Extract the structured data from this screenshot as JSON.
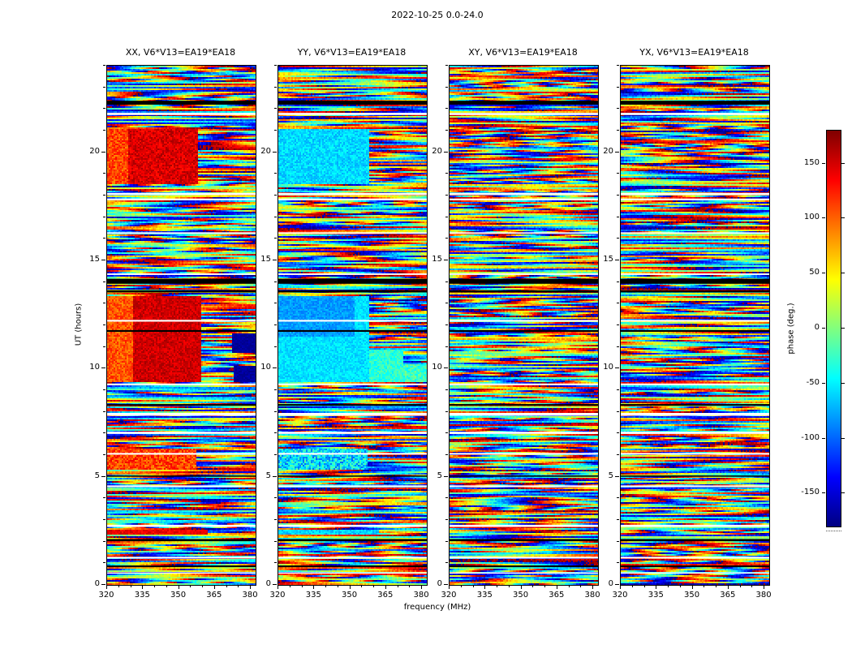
{
  "chart_data": {
    "type": "heatmap",
    "title": "2022-10-25 0.0-24.0",
    "xlabel": "frequency (MHz)",
    "ylabel": "UT (hours)",
    "x_range_mhz": [
      320,
      382
    ],
    "y_range_hours": [
      0,
      24
    ],
    "x_ticks": [
      320,
      335,
      350,
      365,
      380
    ],
    "x_minor_step_mhz": 5,
    "y_ticks": [
      0,
      5,
      10,
      15,
      20
    ],
    "y_minor_step_hours": 1,
    "colorbar": {
      "label": "phase (deg.)",
      "range_deg": [
        -180,
        180
      ],
      "ticks": [
        150,
        100,
        50,
        0,
        -50,
        -100,
        -150
      ],
      "colormap": "jet"
    },
    "panels": [
      {
        "label": "XX, V6*V13=EA19*EA18",
        "features": [
          {
            "ut": [
              10.75,
              11.65
            ],
            "f": [
              372,
              382
            ],
            "phase": -170,
            "jitter": 8
          },
          {
            "ut": [
              9.35,
              10.1
            ],
            "f": [
              373,
              382
            ],
            "phase": -170,
            "jitter": 8
          },
          {
            "ut": [
              9.35,
              13.35
            ],
            "f": [
              320,
              331
            ],
            "phase": 105,
            "jitter": 22
          },
          {
            "ut": [
              9.35,
              13.35
            ],
            "f": [
              331,
              359
            ],
            "phase": 152,
            "jitter": 16
          },
          {
            "ut": [
              18.55,
              21.1
            ],
            "f": [
              320,
              329
            ],
            "phase": 110,
            "jitter": 25
          },
          {
            "ut": [
              18.55,
              21.1
            ],
            "f": [
              329,
              358
            ],
            "phase": 148,
            "jitter": 20
          },
          {
            "ut": [
              5.35,
              6.3
            ],
            "f": [
              320,
              357
            ],
            "phase": 112,
            "jitter": 30
          },
          {
            "ut": [
              2.36,
              2.52
            ],
            "f": [
              320,
              362
            ],
            "phase": 140,
            "jitter": 15
          }
        ]
      },
      {
        "label": "YY, V6*V13=EA19*EA18",
        "features": [
          {
            "ut": [
              11.5,
              13.35
            ],
            "f": [
              320,
              352
            ],
            "phase": -80,
            "jitter": 14
          },
          {
            "ut": [
              9.35,
              13.35
            ],
            "f": [
              320,
              358
            ],
            "phase": -55,
            "jitter": 14
          },
          {
            "ut": [
              9.35,
              10.9
            ],
            "f": [
              358,
              372
            ],
            "phase": -30,
            "jitter": 20
          },
          {
            "ut": [
              9.35,
              10.2
            ],
            "f": [
              372,
              382
            ],
            "phase": -25,
            "jitter": 25
          },
          {
            "ut": [
              18.55,
              21.1
            ],
            "f": [
              320,
              358
            ],
            "phase": -58,
            "jitter": 18
          },
          {
            "ut": [
              5.35,
              6.3
            ],
            "f": [
              320,
              357
            ],
            "phase": -55,
            "jitter": 45
          },
          {
            "ut": [
              2.36,
              2.52
            ],
            "f": [
              320,
              362
            ],
            "phase": -60,
            "jitter": 20
          }
        ]
      },
      {
        "label": "XY, V6*V13=EA19*EA18",
        "features": []
      },
      {
        "label": "YX, V6*V13=EA19*EA18",
        "features": []
      }
    ],
    "noise": {
      "description": "uniform random phase with per-timesample linear phase ramps across frequency, wrapped to [-180,180] deg",
      "seed": 1234
    },
    "data_gaps_ut": [
      [
        21.72,
        21.82
      ],
      [
        18.02,
        18.12
      ],
      [
        17.78,
        17.86
      ],
      [
        16.23,
        16.3
      ],
      [
        14.33,
        14.4
      ],
      [
        12.17,
        12.25
      ],
      [
        9.23,
        9.31
      ],
      [
        7.82,
        7.95
      ],
      [
        6.98,
        7.08
      ],
      [
        6.02,
        6.1
      ],
      [
        4.52,
        4.6
      ],
      [
        2.68,
        2.78
      ],
      [
        1.22,
        1.3
      ],
      [
        0.52,
        0.58
      ]
    ],
    "flagged_black_ut": [
      [
        22.2,
        22.38
      ],
      [
        13.92,
        14.15
      ],
      [
        13.52,
        13.62
      ],
      [
        11.7,
        11.78
      ],
      [
        8.28,
        8.36
      ],
      [
        5.0,
        5.06
      ],
      [
        2.02,
        2.12
      ],
      [
        0.82,
        0.9
      ]
    ]
  }
}
